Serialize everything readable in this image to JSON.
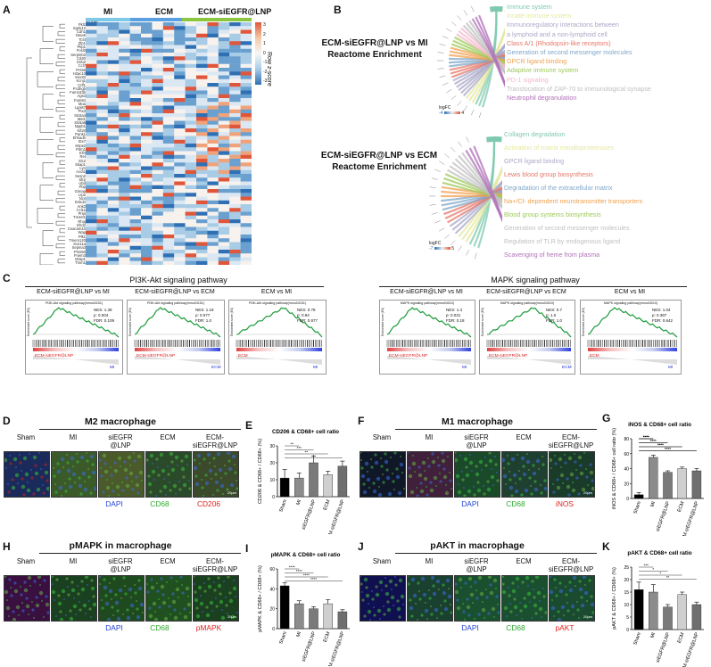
{
  "panels": {
    "A": "A",
    "B": "B",
    "C": "C",
    "D": "D",
    "E": "E",
    "F": "F",
    "G": "G",
    "H": "H",
    "I": "I",
    "J": "J",
    "K": "K"
  },
  "heatmap": {
    "groups": [
      "MI",
      "ECM",
      "ECM-siEGFR@LNP"
    ],
    "group_header": "Group",
    "legend_title": "Row z-score",
    "legend_ticks": [
      "3",
      "2",
      "1",
      "0",
      "-1",
      "-2",
      "-3"
    ],
    "genes": [
      "Pkl1",
      "Sgnk12",
      "Cdh1",
      "Nme6",
      "Tcf4",
      "Zfp1",
      "Pkp1",
      "Fosl2",
      "Serpinb2",
      "Cd40",
      "Gnb2",
      "Ccl7",
      "Prss6",
      "H2ac10",
      "Sox20",
      "Kcnj1",
      "Crlf1",
      "Pcdhgb",
      "Fam163b",
      "Ags3",
      "Fam84",
      "Moa",
      "Lgals7",
      "Ptx3",
      "Slc6a4",
      "Mat1",
      "Slc6a8",
      "Nppb1",
      "Kif20",
      "Pank1",
      "Ehhadh",
      "Stx7",
      "Mrps2",
      "Pdm1",
      "Klf4",
      "Ret",
      "Slc2",
      "Skap1",
      "Lyn",
      "Acot1",
      "Sesn2",
      "Sfrp",
      "Ubd",
      "Pbp",
      "Gimap",
      "Lrp2",
      "Ncs",
      "Enkd4",
      "Ank2",
      "Ccl11",
      "Prss",
      "Tm4sf1",
      "Rhoj",
      "Ehd2",
      "Ceacam10",
      "Wap",
      "Plk1",
      "Tmem120",
      "Scn11a",
      "Sepina3",
      "Prss50",
      "Fnem3",
      "Mrap1",
      "Tmm1"
    ]
  },
  "chord": {
    "top": {
      "title_line1": "ECM-siEGFR@LNP vs MI",
      "title_line2": "Reactome Enrichment",
      "terms": [
        {
          "label": "Immune system",
          "color": "#7fc9b0"
        },
        {
          "label": "Innate immune system",
          "color": "#e4e8a0"
        },
        {
          "label": "Immunoregulatory interactions between",
          "color": "#aaa8c8"
        },
        {
          "label": "a lymphoid and a non-lymphoid cell",
          "color": "#aaa8c8"
        },
        {
          "label": "Class A/1 (Rhodopsin-like receptors)",
          "color": "#e5786a"
        },
        {
          "label": "Generation of second messenger molecules",
          "color": "#7fa7c9"
        },
        {
          "label": "GPCR ligand binding",
          "color": "#f0a050"
        },
        {
          "label": "Adaptive immune system",
          "color": "#9ec95a"
        },
        {
          "label": "PD-1 signaling",
          "color": "#f0b8c8"
        },
        {
          "label": "Translocation of ZAP-70 to immunological synapse",
          "color": "#c0c0c0"
        },
        {
          "label": "Neutrophil degranulation",
          "color": "#b070b8"
        }
      ],
      "legend": {
        "title": "logFC",
        "min": "-4",
        "max": "4"
      }
    },
    "bottom": {
      "title_line1": "ECM-siEGFR@LNP vs ECM",
      "title_line2": "Reactome Enrichment",
      "terms": [
        {
          "label": "Collagen degradation",
          "color": "#7fc9b0"
        },
        {
          "label": "Activation of matrix metalloproteinases",
          "color": "#e4e8a0"
        },
        {
          "label": "GPCR ligand binding",
          "color": "#aaa8c8"
        },
        {
          "label": "Lewis blood group biosynthesis",
          "color": "#e5786a"
        },
        {
          "label": "Degradation of the extracellular matrix",
          "color": "#7fa7c9"
        },
        {
          "label": "Na+/Cl- dependent neurotransmitter transporters",
          "color": "#f0a050"
        },
        {
          "label": "Blood group systems biosynthesis",
          "color": "#9ec95a"
        },
        {
          "label": "Generation of second messenger molecules",
          "color": "#c0c0c0"
        },
        {
          "label": "Regulation of TLR by endogenous ligand",
          "color": "#c0c0c0"
        },
        {
          "label": "Scavenging of heme from plasma",
          "color": "#b070b8"
        }
      ],
      "legend": {
        "title": "logFC",
        "min": "-7",
        "max": "5"
      }
    }
  },
  "gsea": {
    "pi3k_title": "PI3K-Akt signaling pathway",
    "mapk_title": "MAPK signaling pathway",
    "plots": [
      {
        "title": "ECM-siEGFR@LNP vs MI",
        "head": "PI3K-Akt signaling pathway(mmu04151)",
        "stats": [
          "NES: 1.39",
          "p: 0.004",
          "FDR: 0.109"
        ],
        "left": "ECM-siEGFR@LNP",
        "right": "MI",
        "lefttag": "red"
      },
      {
        "title": "ECM-siEGFR@LNP vs ECM",
        "head": "PI3K-Akt signaling pathway(mmu04151)",
        "stats": [
          "NES: 1.18",
          "p: 0.077",
          "FDR: 1.0"
        ],
        "left": "ECM-siEGFR@LNP",
        "right": "ECM",
        "lefttag": "red"
      },
      {
        "title": "ECM vs MI",
        "head": "PI3K-Akt signaling pathway(mmu04151)",
        "stats": [
          "NES: 0.78",
          "p: 0.94",
          "FDR: 0.977"
        ],
        "left": "ECM",
        "right": "MI",
        "lefttag": "red"
      },
      {
        "title": "ECM-siEGFR@LNP vs MI",
        "head": "MAPK signaling pathway(mmu04010)",
        "stats": [
          "NES: 1.3",
          "p: 0.031",
          "FDR: 0.18"
        ],
        "left": "ECM-siEGFR@LNP",
        "right": "MI",
        "lefttag": "red"
      },
      {
        "title": "ECM-siEGFR@LNP vs ECM",
        "head": "MAPK signaling pathway(mmu04010)",
        "stats": [
          "NES: 0.7",
          "p: 1.0",
          "FDR: 1.0"
        ],
        "left": "ECM-siEGFR@LNP",
        "right": "ECM",
        "lefttag": "red"
      },
      {
        "title": "ECM vs MI",
        "head": "MAPK signaling pathway(mmu04010)",
        "stats": [
          "NES: 1.04",
          "p: 0.387",
          "FDR: 0.642"
        ],
        "left": "ECM",
        "right": "MI",
        "lefttag": "red"
      }
    ],
    "ylabel": "Enrichment score (ES)"
  },
  "micro_rows": [
    {
      "title": "M2 macrophage",
      "groups": [
        "Sham",
        "MI",
        "siEGFR\n@LNP",
        "ECM",
        "ECM-\nsiEGFR@LNP"
      ],
      "stains": [
        "DAPI",
        "CD68",
        "CD206"
      ]
    },
    {
      "title": "M1 macrophage",
      "groups": [
        "Sham",
        "MI",
        "siEGFR\n@LNP",
        "ECM",
        "ECM-\nsiEGFR@LNP"
      ],
      "stains": [
        "DAPI",
        "CD68",
        "iNOS"
      ]
    },
    {
      "title": "pMAPK in macrophage",
      "groups": [
        "Sham",
        "MI",
        "siEGFR\n@LNP",
        "ECM",
        "ECM-\nsiEGFR@LNP"
      ],
      "stains": [
        "DAPI",
        "CD68",
        "pMAPK"
      ]
    },
    {
      "title": "pAKT in macrophage",
      "groups": [
        "Sham",
        "MI",
        "siEGFR\n@LNP",
        "ECM",
        "ECM-\nsiEGFR@LNP"
      ],
      "stains": [
        "DAPI",
        "CD68",
        "pAKT"
      ]
    }
  ],
  "stain_colors": {
    "DAPI": "#1f3fd6",
    "CD68": "#2ea82e",
    "red": "#e0201c"
  },
  "scale_label": "20μm",
  "chart_data": [
    {
      "type": "bar",
      "panel": "E",
      "title": "CD206 & CD68+ cell ratio",
      "ylabel": "CD206 & CD68+ / CD68+ (%)",
      "categories": [
        "Sham",
        "MI",
        "siEGFR@LNP",
        "ECM",
        "ECM-siEGFR@LNP"
      ],
      "values": [
        11,
        11,
        20,
        13,
        18
      ],
      "errors": [
        5,
        3,
        4,
        2,
        3
      ],
      "colors": [
        "#000000",
        "#8c8c8c",
        "#7a7a7a",
        "#cfcfcf",
        "#6f6f6f"
      ],
      "ylim": [
        0,
        30
      ],
      "yticks": [
        0,
        10,
        20,
        30
      ],
      "sig": [
        "**",
        "***",
        "**",
        "*"
      ]
    },
    {
      "type": "bar",
      "panel": "G",
      "title": "iNOS & CD68+ cell ratio",
      "ylabel": "iNOS & CD68+ / CD68+ cell ratio (%)",
      "categories": [
        "Sham",
        "MI",
        "siEGFR@LNP",
        "ECM",
        "ECM-siEGFR@LNP"
      ],
      "values": [
        5,
        55,
        35,
        40,
        37
      ],
      "errors": [
        3,
        3,
        2,
        2,
        3
      ],
      "colors": [
        "#000000",
        "#8c8c8c",
        "#7a7a7a",
        "#cfcfcf",
        "#6f6f6f"
      ],
      "ylim": [
        0,
        80
      ],
      "yticks": [
        0,
        20,
        40,
        60,
        80
      ],
      "sig": [
        "****",
        "****",
        "****",
        "****",
        "****",
        "****",
        "****",
        "****",
        "****"
      ]
    },
    {
      "type": "bar",
      "panel": "I",
      "title": "pMAPK & CD68+ cell ratio",
      "ylabel": "pMAPK & CD68+ / CD68+ (%)",
      "categories": [
        "Sham",
        "MI",
        "siEGFR@LNP",
        "ECM",
        "ECM-siEGFR@LNP"
      ],
      "values": [
        43,
        25,
        20,
        25,
        17
      ],
      "errors": [
        3,
        3,
        2,
        4,
        2
      ],
      "colors": [
        "#000000",
        "#8c8c8c",
        "#7a7a7a",
        "#cfcfcf",
        "#6f6f6f"
      ],
      "ylim": [
        0,
        60
      ],
      "yticks": [
        0,
        20,
        40,
        60
      ],
      "sig": [
        "****",
        "****",
        "****",
        "****"
      ]
    },
    {
      "type": "bar",
      "panel": "K",
      "title": "pAKT & CD68+ cell ratio",
      "ylabel": "pAKT & CD68+ / CD68+ (%)",
      "categories": [
        "Sham",
        "MI",
        "siEGFR@LNP",
        "ECM",
        "ECM-siEGFR@LNP"
      ],
      "values": [
        16,
        15,
        9,
        14,
        10
      ],
      "errors": [
        3,
        3,
        1,
        1,
        1
      ],
      "colors": [
        "#000000",
        "#8c8c8c",
        "#7a7a7a",
        "#cfcfcf",
        "#6f6f6f"
      ],
      "ylim": [
        0,
        25
      ],
      "yticks": [
        0,
        5,
        10,
        15,
        20,
        25
      ],
      "sig": [
        "***",
        "*",
        "*",
        "**"
      ]
    }
  ]
}
